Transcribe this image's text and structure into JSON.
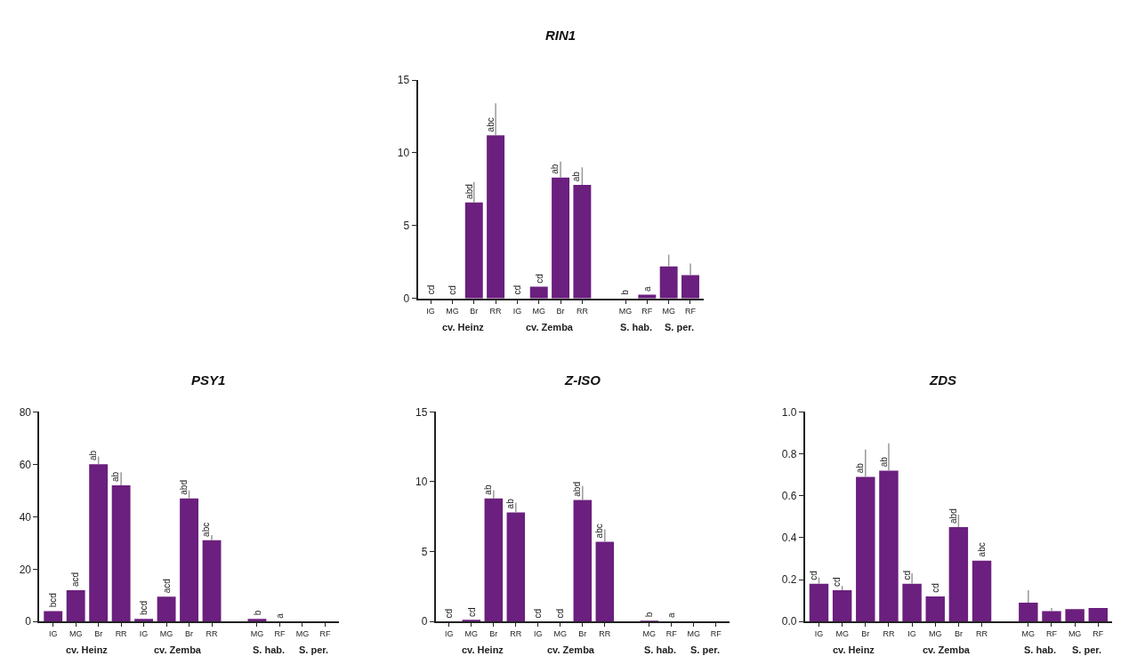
{
  "chart_data": [
    {
      "type": "bar",
      "title": "RIN1",
      "color": "#6b1f7e",
      "categories": [
        "IG",
        "MG",
        "Br",
        "RR",
        "IG",
        "MG",
        "Br",
        "RR",
        null,
        "MG",
        "RF",
        "MG",
        "RF"
      ],
      "values": [
        0,
        0,
        6.6,
        11.2,
        0,
        0.8,
        8.3,
        7.8,
        null,
        0,
        0.25,
        2.2,
        1.6
      ],
      "errors": [
        null,
        null,
        [
          6.6,
          8.0
        ],
        [
          11.2,
          13.4
        ],
        null,
        null,
        [
          8.3,
          9.4
        ],
        [
          7.8,
          9.0
        ],
        null,
        null,
        null,
        [
          2.2,
          3.0
        ],
        [
          1.6,
          2.4
        ]
      ],
      "value_labels": [
        "cd",
        "cd",
        "abd",
        "abc",
        "cd",
        "cd",
        "ab",
        "ab",
        null,
        "b",
        "a",
        null,
        null
      ],
      "ylim": [
        0,
        15
      ],
      "yticks": [
        0,
        5,
        10,
        15
      ],
      "annotations": [
        "cv. Heinz",
        "cv. Zemba",
        "S. hab.",
        "S. per."
      ]
    },
    {
      "type": "bar",
      "title": "PSY1",
      "color": "#6b1f7e",
      "categories": [
        "IG",
        "MG",
        "Br",
        "RR",
        "IG",
        "MG",
        "Br",
        "RR",
        null,
        "MG",
        "RF",
        "MG",
        "RF"
      ],
      "values": [
        4,
        12,
        60,
        52,
        1,
        9.5,
        47,
        31,
        null,
        1,
        0,
        0,
        0
      ],
      "errors": [
        null,
        null,
        [
          60,
          63
        ],
        [
          52,
          57
        ],
        null,
        null,
        [
          47,
          50
        ],
        [
          31,
          33
        ],
        null,
        null,
        null,
        null,
        null
      ],
      "value_labels": [
        "bcd",
        "acd",
        "ab",
        "ab",
        "bcd",
        "acd",
        "abd",
        "abc",
        null,
        "b",
        "a",
        null,
        null
      ],
      "ylim": [
        0,
        80
      ],
      "yticks": [
        0,
        20,
        40,
        60,
        80
      ],
      "annotations": [
        "cv. Heinz",
        "cv. Zemba",
        "S. hab.",
        "S. per."
      ]
    },
    {
      "type": "bar",
      "title": "Z-ISO",
      "color": "#6b1f7e",
      "categories": [
        "IG",
        "MG",
        "Br",
        "RR",
        "IG",
        "MG",
        "Br",
        "RR",
        null,
        "MG",
        "RF",
        "MG",
        "RF"
      ],
      "values": [
        0,
        0.1,
        8.8,
        7.8,
        0,
        0,
        8.7,
        5.7,
        null,
        0.05,
        0,
        0,
        0
      ],
      "errors": [
        null,
        null,
        [
          8.8,
          9.4
        ],
        [
          7.8,
          8.5
        ],
        null,
        null,
        [
          8.7,
          9.7
        ],
        [
          5.7,
          6.6
        ],
        null,
        null,
        null,
        null,
        null
      ],
      "value_labels": [
        "cd",
        "cd",
        "ab",
        "ab",
        "cd",
        "cd",
        "abd",
        "abc",
        null,
        "b",
        "a",
        null,
        null
      ],
      "ylim": [
        0,
        15
      ],
      "yticks": [
        0,
        5,
        10,
        15
      ],
      "annotations": [
        "cv. Heinz",
        "cv. Zemba",
        "S. hab.",
        "S. per."
      ]
    },
    {
      "type": "bar",
      "title": "ZDS",
      "color": "#6b1f7e",
      "categories": [
        "IG",
        "MG",
        "Br",
        "RR",
        "IG",
        "MG",
        "Br",
        "RR",
        null,
        "MG",
        "RF",
        "MG",
        "RF"
      ],
      "values": [
        0.18,
        0.15,
        0.69,
        0.72,
        0.18,
        0.12,
        0.45,
        0.29,
        null,
        0.09,
        0.05,
        0.06,
        0.065
      ],
      "errors": [
        [
          0.18,
          0.21
        ],
        [
          0.15,
          0.17
        ],
        [
          0.69,
          0.82
        ],
        [
          0.72,
          0.85
        ],
        [
          0.18,
          0.23
        ],
        null,
        [
          0.45,
          0.51
        ],
        null,
        null,
        [
          0.09,
          0.15
        ],
        [
          0.05,
          0.065
        ],
        null,
        null
      ],
      "value_labels": [
        "cd",
        "cd",
        "ab",
        "ab",
        "cd",
        "cd",
        "abd",
        "abc",
        null,
        null,
        null,
        null,
        null
      ],
      "ylim": [
        0,
        1.0
      ],
      "yticks": [
        {
          "value": 0,
          "label": "0.0"
        },
        0.2,
        0.4,
        0.6,
        0.8,
        {
          "value": 1.0,
          "label": "1.0"
        }
      ],
      "annotations": [
        "cv. Heinz",
        "cv. Zemba",
        "S. hab.",
        "S. per."
      ]
    }
  ]
}
